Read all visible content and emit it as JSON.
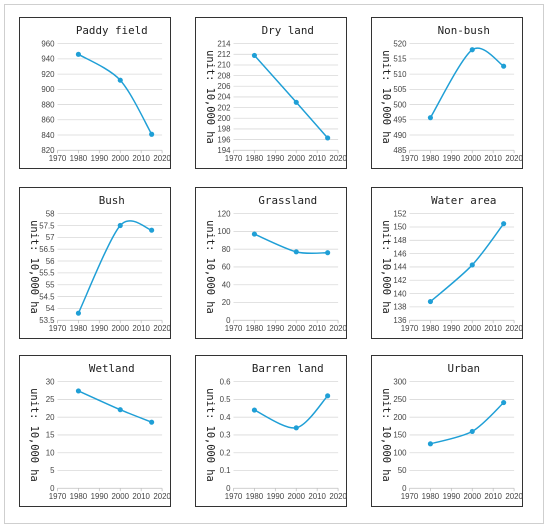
{
  "figure": {
    "series_color": "#1f9fd6",
    "x_tick_labels": [
      "1970",
      "1980",
      "1990",
      "2000",
      "2010",
      "2020"
    ]
  },
  "chart_data": [
    {
      "type": "line",
      "title": "Paddy field",
      "ylabel": "",
      "x": [
        1980,
        2000,
        2015
      ],
      "values": [
        946,
        912,
        841
      ],
      "xlim": [
        1970,
        2020
      ],
      "ylim": [
        820,
        960
      ],
      "yticks": [
        820,
        840,
        860,
        880,
        900,
        920,
        940,
        960
      ],
      "ytick_labels": [
        "820",
        "840",
        "860",
        "880",
        "900",
        "920",
        "940",
        "960"
      ],
      "grid": true
    },
    {
      "type": "line",
      "title": "Dry land",
      "ylabel": "unit: 10,000 ha",
      "x": [
        1980,
        2000,
        2015
      ],
      "values": [
        211.8,
        203.0,
        196.3
      ],
      "xlim": [
        1970,
        2020
      ],
      "ylim": [
        194,
        214
      ],
      "yticks": [
        194,
        196,
        198,
        200,
        202,
        204,
        206,
        208,
        210,
        212,
        214
      ],
      "ytick_labels": [
        "194",
        "196",
        "198",
        "200",
        "202",
        "204",
        "206",
        "208",
        "210",
        "212",
        "214"
      ],
      "grid": true
    },
    {
      "type": "line",
      "title": "Non-bush",
      "ylabel": "unit: 10,000 ha",
      "x": [
        1980,
        2000,
        2015
      ],
      "values": [
        495.7,
        518.0,
        512.6
      ],
      "xlim": [
        1970,
        2020
      ],
      "ylim": [
        485,
        520
      ],
      "yticks": [
        485,
        490,
        495,
        500,
        505,
        510,
        515,
        520
      ],
      "ytick_labels": [
        "485",
        "490",
        "495",
        "500",
        "505",
        "510",
        "515",
        "520"
      ],
      "grid": true
    },
    {
      "type": "line",
      "title": "Bush",
      "ylabel": "unit: 10,000 ha",
      "x": [
        1980,
        2000,
        2015
      ],
      "values": [
        53.8,
        57.5,
        57.3
      ],
      "xlim": [
        1970,
        2020
      ],
      "ylim": [
        53.5,
        58
      ],
      "yticks": [
        53.5,
        54,
        54.5,
        55,
        55.5,
        56,
        56.5,
        57,
        57.5,
        58
      ],
      "ytick_labels": [
        "53.5",
        "54",
        "54.5",
        "55",
        "55.5",
        "56",
        "56.5",
        "57",
        "57.5",
        "58"
      ],
      "grid": true
    },
    {
      "type": "line",
      "title": "Grassland",
      "ylabel": "unit: 10,000 ha",
      "x": [
        1980,
        2000,
        2015
      ],
      "values": [
        97,
        77,
        76
      ],
      "xlim": [
        1970,
        2020
      ],
      "ylim": [
        0,
        120
      ],
      "yticks": [
        0,
        20,
        40,
        60,
        80,
        100,
        120
      ],
      "ytick_labels": [
        "0",
        "20",
        "40",
        "60",
        "80",
        "100",
        "120"
      ],
      "grid": true
    },
    {
      "type": "line",
      "title": "Water area",
      "ylabel": "unit: 10,000 ha",
      "x": [
        1980,
        2000,
        2015
      ],
      "values": [
        138.8,
        144.3,
        150.5
      ],
      "xlim": [
        1970,
        2020
      ],
      "ylim": [
        136,
        152
      ],
      "yticks": [
        136,
        138,
        140,
        142,
        144,
        146,
        148,
        150,
        152
      ],
      "ytick_labels": [
        "136",
        "138",
        "140",
        "142",
        "144",
        "146",
        "148",
        "150",
        "152"
      ],
      "grid": true
    },
    {
      "type": "line",
      "title": "Wetland",
      "ylabel": "unit: 10,000 ha",
      "x": [
        1980,
        2000,
        2015
      ],
      "values": [
        27.4,
        22.1,
        18.6
      ],
      "xlim": [
        1970,
        2020
      ],
      "ylim": [
        0,
        30
      ],
      "yticks": [
        0,
        5,
        10,
        15,
        20,
        25,
        30
      ],
      "ytick_labels": [
        "0",
        "5",
        "10",
        "15",
        "20",
        "25",
        "30"
      ],
      "grid": true
    },
    {
      "type": "line",
      "title": "Barren land",
      "ylabel": "unit: 10,000 ha",
      "x": [
        1980,
        2000,
        2015
      ],
      "values": [
        0.44,
        0.34,
        0.52
      ],
      "xlim": [
        1970,
        2020
      ],
      "ylim": [
        0,
        0.6
      ],
      "yticks": [
        0,
        0.1,
        0.2,
        0.3,
        0.4,
        0.5,
        0.6
      ],
      "ytick_labels": [
        "0",
        "0.1",
        "0.2",
        "0.3",
        "0.4",
        "0.5",
        "0.6"
      ],
      "grid": true
    },
    {
      "type": "line",
      "title": "Urban",
      "ylabel": "unit: 10,000 ha",
      "x": [
        1980,
        2000,
        2015
      ],
      "values": [
        125,
        160,
        241
      ],
      "xlim": [
        1970,
        2020
      ],
      "ylim": [
        0,
        300
      ],
      "yticks": [
        0,
        50,
        100,
        150,
        200,
        250,
        300
      ],
      "ytick_labels": [
        "0",
        "50",
        "100",
        "150",
        "200",
        "250",
        "300"
      ],
      "grid": true
    }
  ]
}
